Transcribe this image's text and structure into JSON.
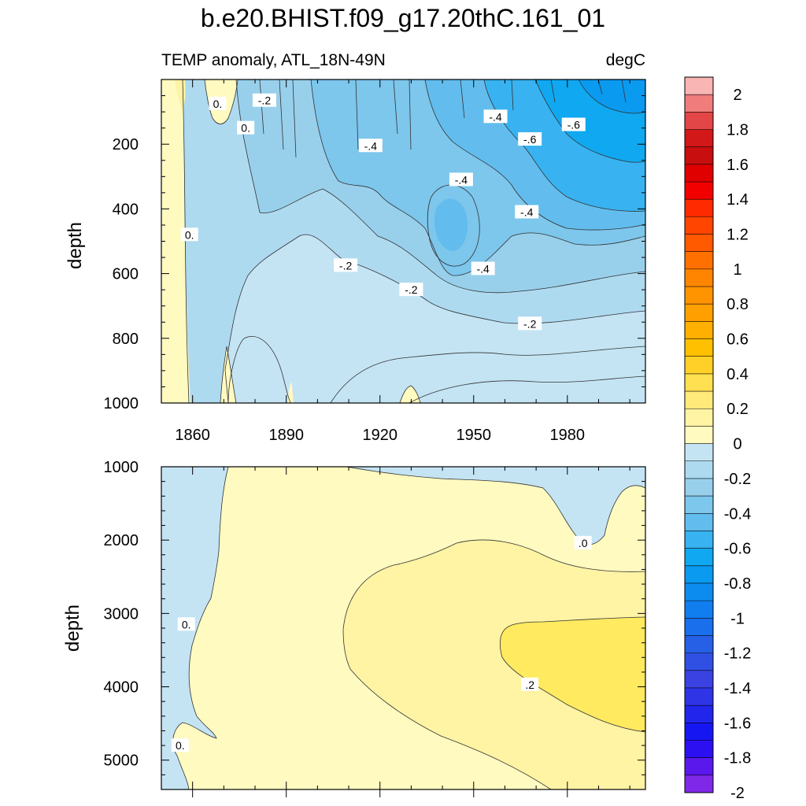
{
  "title": "b.e20.BHIST.f09_g17.20thC.161_01",
  "chart_data": [
    {
      "type": "contour",
      "panel": "upper",
      "subtitle_left": "TEMP anomaly, ATL_18N-49N",
      "subtitle_right": "degC",
      "ylabel": "depth",
      "xlim": [
        1850,
        2005
      ],
      "ylim": [
        0,
        1000
      ],
      "y_reversed": true,
      "xticks": [
        "1860",
        "1890",
        "1920",
        "1950",
        "1980"
      ],
      "yticks": [
        "200",
        "400",
        "600",
        "800",
        "1000"
      ],
      "contour_labels": [
        {
          "text": "0.",
          "x": 1868,
          "y": 75
        },
        {
          "text": "-.2",
          "x": 1883,
          "y": 65
        },
        {
          "text": "0.",
          "x": 1877,
          "y": 150
        },
        {
          "text": "0.",
          "x": 1859,
          "y": 480
        },
        {
          "text": "-.4",
          "x": 1917,
          "y": 205
        },
        {
          "text": "-.4",
          "x": 1957,
          "y": 115
        },
        {
          "text": "-.6",
          "x": 1968,
          "y": 185
        },
        {
          "text": "-.6",
          "x": 1982,
          "y": 140
        },
        {
          "text": "-.4",
          "x": 1946,
          "y": 310
        },
        {
          "text": "-.4",
          "x": 1967,
          "y": 410
        },
        {
          "text": "-.2",
          "x": 1909,
          "y": 575
        },
        {
          "text": "-.2",
          "x": 1930,
          "y": 650
        },
        {
          "text": "-.4",
          "x": 1953,
          "y": 585
        },
        {
          "text": "-.2",
          "x": 1968,
          "y": 755
        }
      ]
    },
    {
      "type": "contour",
      "panel": "lower",
      "ylabel": "depth",
      "xlim": [
        1850,
        2005
      ],
      "ylim": [
        1000,
        5400
      ],
      "y_reversed": true,
      "yticks": [
        "1000",
        "2000",
        "3000",
        "4000",
        "5000"
      ],
      "contour_labels": [
        {
          "text": ".0",
          "x": 1985,
          "y": 2040
        },
        {
          "text": "0.",
          "x": 1858,
          "y": 3150
        },
        {
          "text": ".2",
          "x": 1968,
          "y": 3970
        },
        {
          "text": "0.",
          "x": 1856,
          "y": 4800
        }
      ]
    }
  ],
  "colorbar": {
    "labels": [
      "2",
      "1.8",
      "1.6",
      "1.4",
      "1.2",
      "1",
      "0.8",
      "0.6",
      "0.4",
      "0.2",
      "0",
      "-0.2",
      "-0.4",
      "-0.6",
      "-0.8",
      "-1",
      "-1.2",
      "-1.4",
      "-1.6",
      "-1.8",
      "-2"
    ],
    "colors": [
      "#F9B4B4",
      "#F07C7C",
      "#E34646",
      "#D21818",
      "#C80E0E",
      "#E00000",
      "#F20000",
      "#FF2A00",
      "#FF4500",
      "#FF5A00",
      "#FF7000",
      "#FF8500",
      "#FF9300",
      "#FFA000",
      "#FFB000",
      "#FFC000",
      "#FFD028",
      "#FFE050",
      "#FFEA7A",
      "#FFF3A4",
      "#FFFAC0",
      "#C4E4F4",
      "#AEDAF0",
      "#98D0EC",
      "#7DC6EC",
      "#62BDEE",
      "#38B2F0",
      "#10A8F0",
      "#0A9AF0",
      "#0D8CF0",
      "#117EF0",
      "#1A70EC",
      "#2560E6",
      "#3050E4",
      "#3B42E2",
      "#2F34E6",
      "#2226EC",
      "#1616F2",
      "#2C10F2",
      "#5A18EC",
      "#8028E8"
    ]
  }
}
